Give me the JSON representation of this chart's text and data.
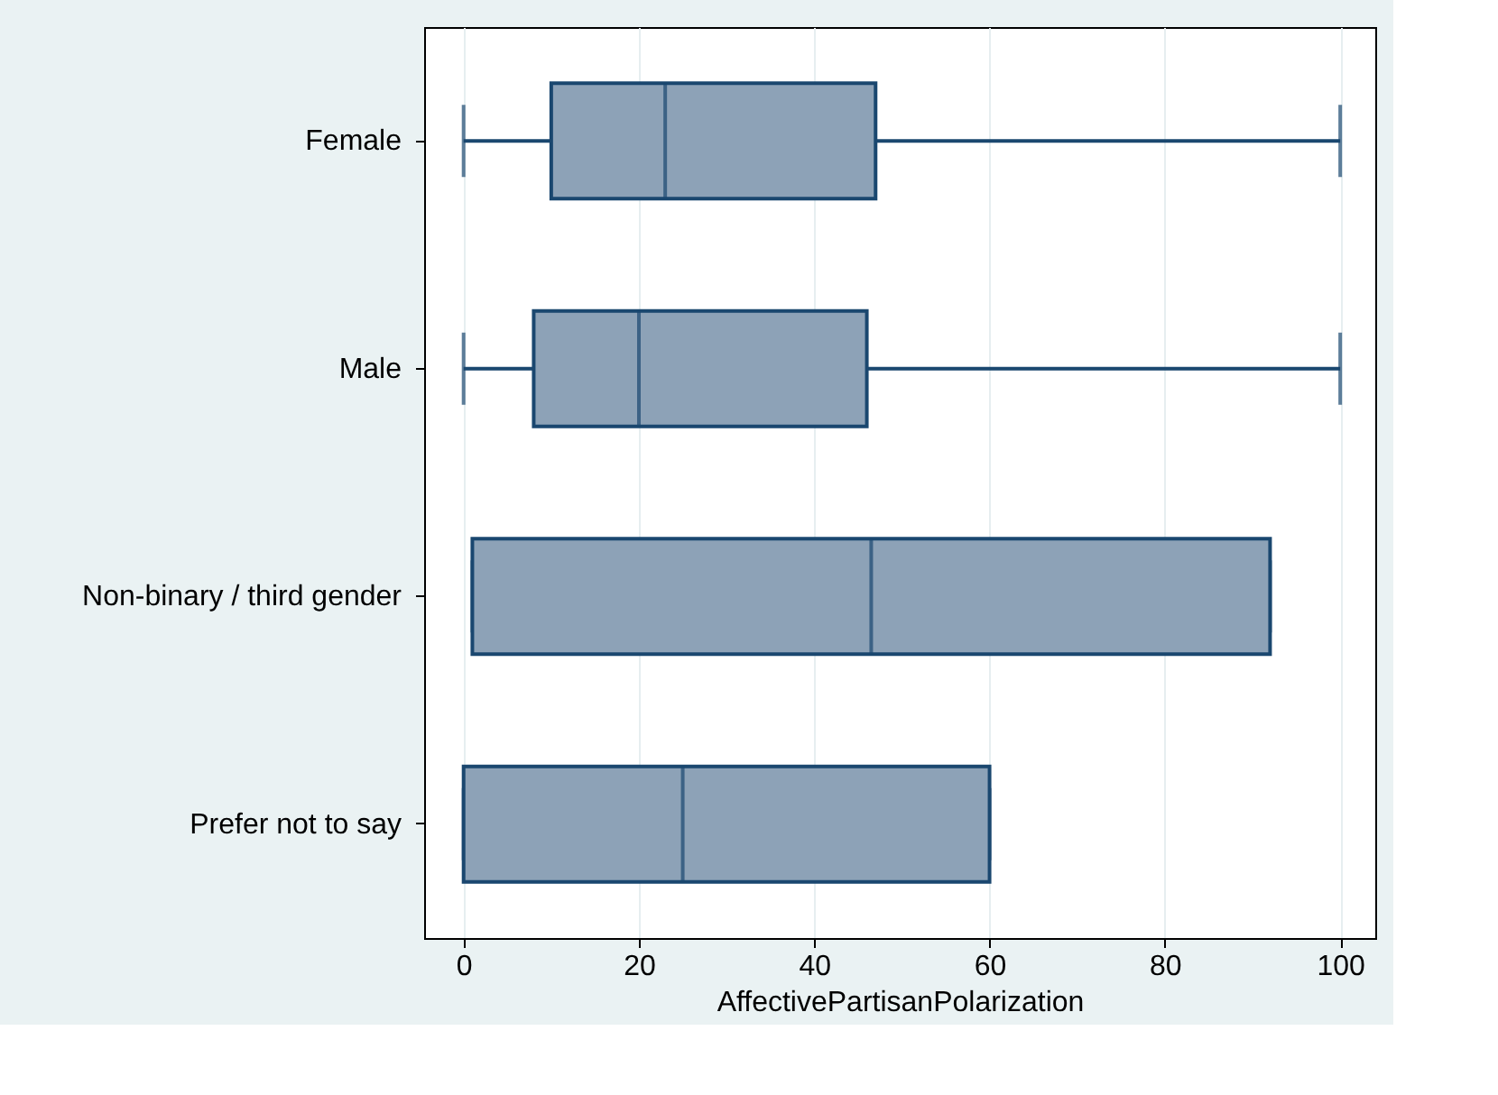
{
  "chart_data": {
    "type": "box",
    "orientation": "horizontal",
    "categories": [
      "Female",
      "Male",
      "Non-binary / third gender",
      "Prefer not to say"
    ],
    "boxes": [
      {
        "low": 0,
        "q1": 10,
        "median": 23,
        "q3": 47,
        "high": 100
      },
      {
        "low": 0,
        "q1": 8,
        "median": 20,
        "q3": 46,
        "high": 100
      },
      {
        "low": 1,
        "q1": 1,
        "median": 46.5,
        "q3": 92,
        "high": 92
      },
      {
        "low": 0,
        "q1": 0,
        "median": 25,
        "q3": 60,
        "high": 60
      }
    ],
    "color": "#8da2b7",
    "xlabel": "AffectivePartisanPolarization",
    "xlim": [
      -4.5,
      104
    ],
    "xticks": [
      0,
      20,
      40,
      60,
      80,
      100
    ],
    "grid": "x"
  }
}
